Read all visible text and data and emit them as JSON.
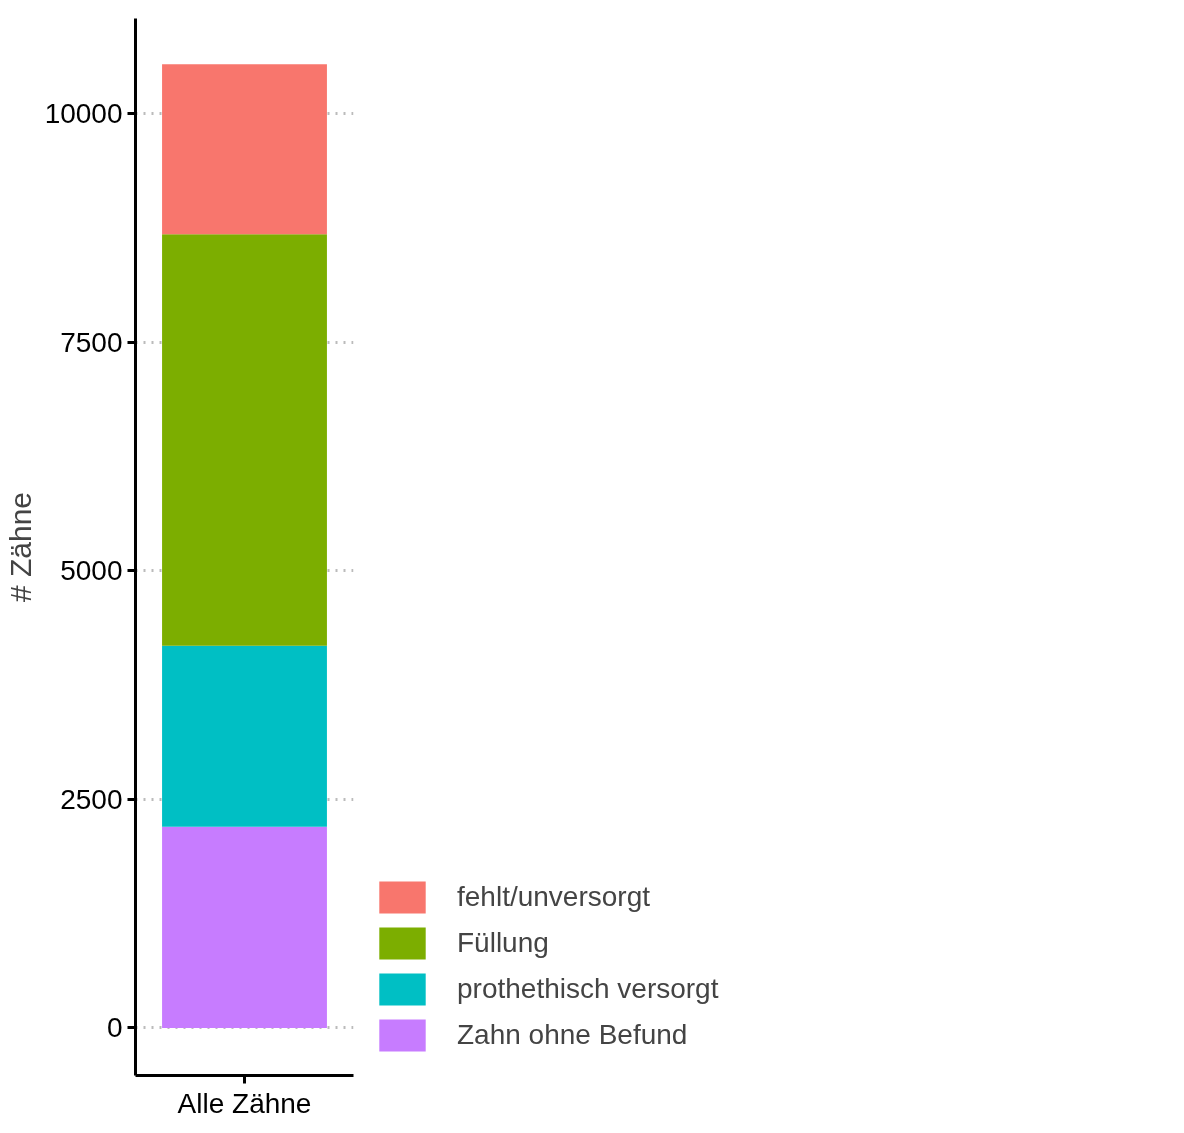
{
  "chart_data": {
    "type": "bar",
    "stacked": true,
    "ylabel": "# Zähne",
    "categories": [
      "Alle Zähne"
    ],
    "series": [
      {
        "name": "Zahn ohne Befund",
        "color": "#c77cff",
        "values": [
          2200
        ]
      },
      {
        "name": "prothethisch versorgt",
        "color": "#00bfc4",
        "values": [
          1980
        ]
      },
      {
        "name": "Füllung",
        "color": "#7cae00",
        "values": [
          4500
        ]
      },
      {
        "name": "fehlt/unversorgt",
        "color": "#f8766d",
        "values": [
          1860
        ]
      }
    ],
    "ylim": [
      -520,
      11040
    ],
    "yticks": [
      0,
      2500,
      5000,
      7500,
      10000
    ],
    "grid": "y",
    "legend": "bottom right"
  }
}
